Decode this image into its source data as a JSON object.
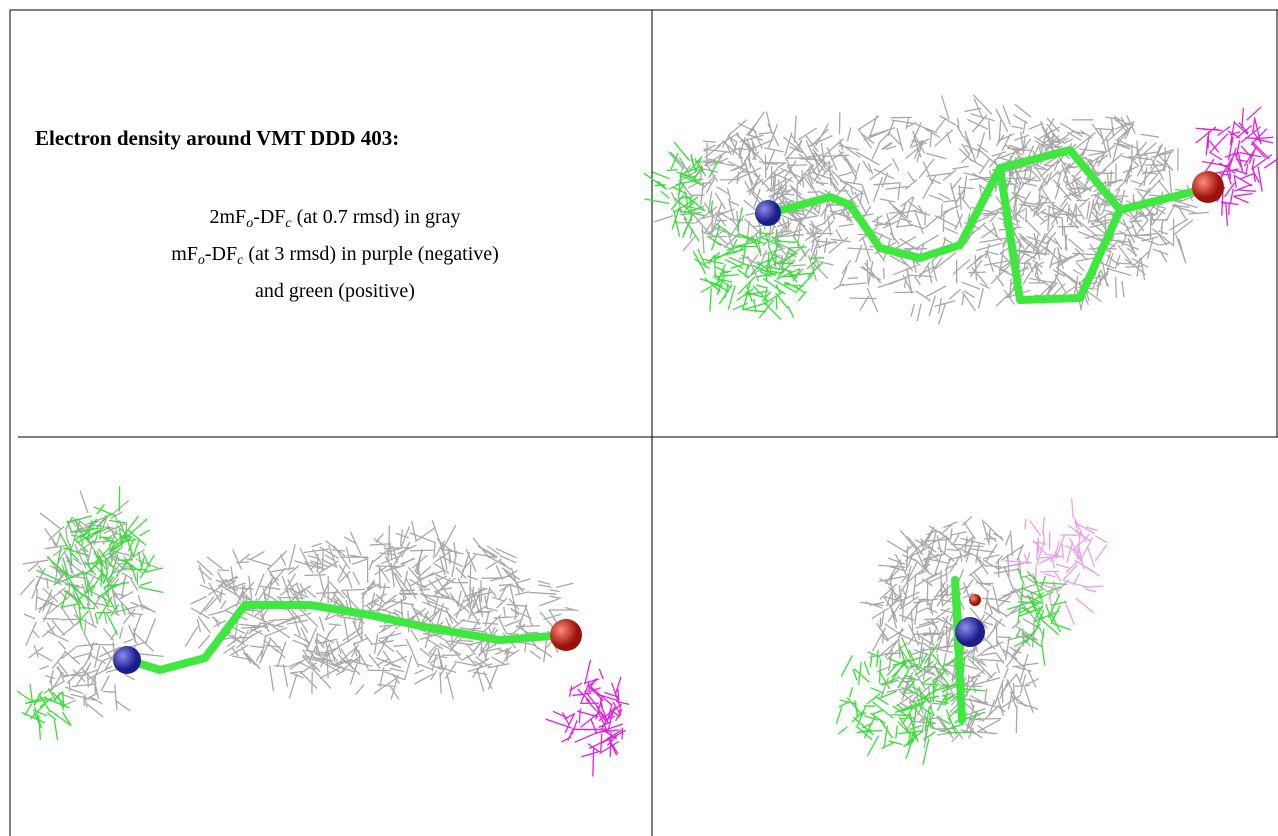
{
  "title": "Electron density around VMT DDD 403:",
  "legend_lines": [
    [
      {
        "t": "2mF"
      },
      {
        "sub": "o"
      },
      {
        "t": "-DF"
      },
      {
        "sub": "c"
      },
      {
        "t": " (at 0.7 rmsd) in gray"
      }
    ],
    [
      {
        "t": "mF"
      },
      {
        "sub": "o"
      },
      {
        "t": "-DF"
      },
      {
        "sub": "c"
      },
      {
        "t": " (at 3 rmsd) in purple (negative)"
      }
    ],
    [
      {
        "t": "and green (positive)"
      }
    ]
  ]
}
